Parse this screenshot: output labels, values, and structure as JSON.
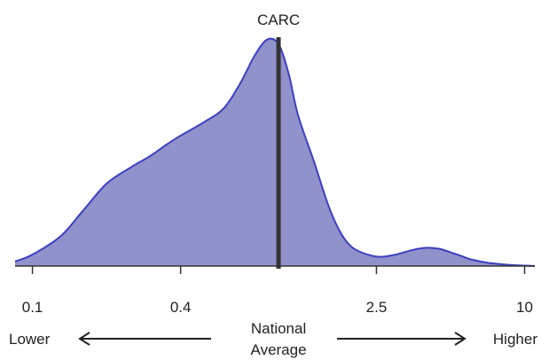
{
  "chart_data": {
    "type": "area",
    "subtype": "density",
    "x_scale": "log",
    "xlim": [
      0.085,
      11
    ],
    "x_ticks": [
      {
        "value": 0.1,
        "label": "0.1"
      },
      {
        "value": 0.4,
        "label": "0.4"
      },
      {
        "value": 2.5,
        "label": "2.5"
      },
      {
        "value": 10,
        "label": "10"
      }
    ],
    "series": [
      {
        "x": [
          0.085,
          0.1,
          0.13,
          0.16,
          0.2,
          0.25,
          0.3,
          0.35,
          0.4,
          0.5,
          0.6,
          0.7,
          0.8,
          0.9,
          1.0,
          1.1,
          1.2,
          1.4,
          1.6,
          1.8,
          2.0,
          2.3,
          2.6,
          3.0,
          3.5,
          4.0,
          4.5,
          5.0,
          5.5,
          6.0,
          7.0,
          8.0,
          9.0,
          10.0,
          11.0
        ],
        "y": [
          0.02,
          0.05,
          0.13,
          0.24,
          0.36,
          0.43,
          0.48,
          0.53,
          0.57,
          0.63,
          0.69,
          0.8,
          0.92,
          0.99,
          0.97,
          0.84,
          0.66,
          0.45,
          0.26,
          0.14,
          0.08,
          0.05,
          0.04,
          0.05,
          0.07,
          0.08,
          0.075,
          0.06,
          0.045,
          0.03,
          0.015,
          0.008,
          0.004,
          0.002,
          0.0
        ]
      }
    ],
    "fill_color": "#9191cb",
    "line_color": "#3d3fc0",
    "marker": {
      "label": "CARC",
      "x": 1.0,
      "color": "#333333"
    },
    "bottom_labels": {
      "left": "Lower",
      "center_line1": "National",
      "center_line2": "Average",
      "right": "Higher"
    },
    "grid": false,
    "legend": "none"
  }
}
